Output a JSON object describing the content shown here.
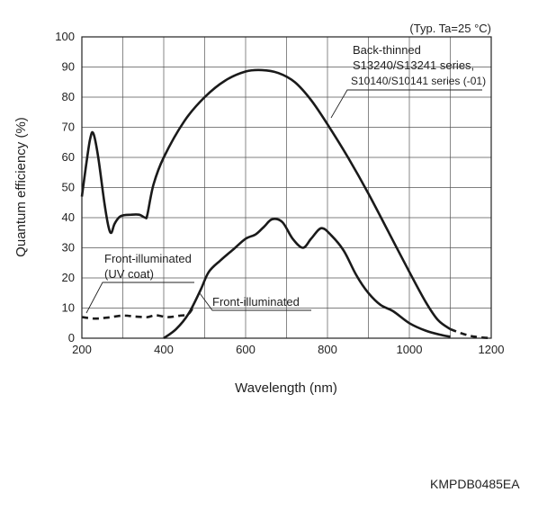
{
  "chart_data": {
    "type": "line",
    "condition_note": "(Typ. Ta=25 °C)",
    "xlabel": "Wavelength (nm)",
    "ylabel": "Quantum efficiency (%)",
    "xlim": [
      200,
      1200
    ],
    "ylim": [
      0,
      100
    ],
    "x_ticks": [
      200,
      400,
      600,
      800,
      1000,
      1200
    ],
    "y_ticks": [
      0,
      10,
      20,
      30,
      40,
      50,
      60,
      70,
      80,
      90,
      100
    ],
    "grid": true,
    "series": [
      {
        "name": "Back-thinned",
        "label_lines": [
          "Back-thinned",
          "S13240/S13241 series,",
          "S10140/S10141 series (-01)"
        ],
        "style": "solid",
        "points": [
          [
            200,
            47
          ],
          [
            210,
            57
          ],
          [
            220,
            66
          ],
          [
            228,
            68
          ],
          [
            240,
            60
          ],
          [
            255,
            45
          ],
          [
            265,
            37
          ],
          [
            272,
            35
          ],
          [
            280,
            38
          ],
          [
            295,
            40.5
          ],
          [
            320,
            41
          ],
          [
            340,
            41
          ],
          [
            355,
            40
          ],
          [
            360,
            41
          ],
          [
            375,
            51
          ],
          [
            400,
            60
          ],
          [
            450,
            72
          ],
          [
            500,
            80
          ],
          [
            550,
            85.5
          ],
          [
            600,
            88.5
          ],
          [
            640,
            89
          ],
          [
            680,
            88
          ],
          [
            720,
            85
          ],
          [
            760,
            79
          ],
          [
            800,
            71
          ],
          [
            850,
            60
          ],
          [
            900,
            48
          ],
          [
            950,
            35
          ],
          [
            1000,
            22
          ],
          [
            1040,
            12
          ],
          [
            1070,
            6
          ],
          [
            1100,
            3
          ]
        ],
        "dashed_tail": [
          [
            1100,
            3
          ],
          [
            1130,
            1.5
          ],
          [
            1160,
            0.5
          ],
          [
            1200,
            0
          ]
        ]
      },
      {
        "name": "Front-illuminated",
        "style": "solid",
        "points": [
          [
            400,
            0
          ],
          [
            430,
            3
          ],
          [
            460,
            8
          ],
          [
            490,
            16
          ],
          [
            510,
            22
          ],
          [
            540,
            26
          ],
          [
            570,
            29.5
          ],
          [
            600,
            33
          ],
          [
            625,
            34.5
          ],
          [
            645,
            37
          ],
          [
            665,
            39.5
          ],
          [
            690,
            38.5
          ],
          [
            715,
            33
          ],
          [
            740,
            30
          ],
          [
            760,
            33
          ],
          [
            785,
            36.5
          ],
          [
            810,
            34
          ],
          [
            840,
            29
          ],
          [
            870,
            21
          ],
          [
            900,
            15
          ],
          [
            930,
            11
          ],
          [
            960,
            9
          ],
          [
            1000,
            5
          ],
          [
            1040,
            2.5
          ],
          [
            1080,
            1
          ],
          [
            1100,
            0.5
          ]
        ]
      },
      {
        "name": "Front-illuminated (UV coat)",
        "label_lines": [
          "Front-illuminated",
          "(UV coat)"
        ],
        "style": "dashed",
        "points": [
          [
            200,
            7
          ],
          [
            230,
            6.5
          ],
          [
            260,
            6.8
          ],
          [
            300,
            7.5
          ],
          [
            330,
            7.2
          ],
          [
            360,
            7
          ],
          [
            380,
            7.6
          ],
          [
            410,
            7
          ],
          [
            440,
            7.5
          ],
          [
            460,
            8
          ],
          [
            475,
            11
          ]
        ]
      }
    ],
    "annotations": [
      "Back-thinned",
      "S13240/S13241 series,",
      "S10140/S10141 series (-01)",
      "Front-illuminated",
      "(UV coat)",
      "Front-illuminated"
    ]
  },
  "document_code": "KMPDB0485EA"
}
